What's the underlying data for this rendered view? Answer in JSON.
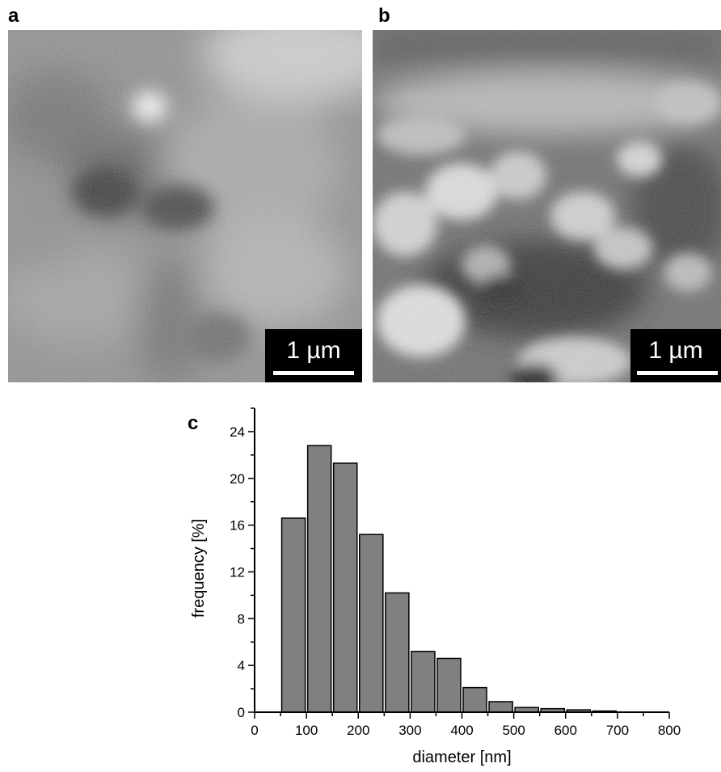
{
  "panels": {
    "a": {
      "letter": "a",
      "scalebar_label": "1 µm"
    },
    "b": {
      "letter": "b",
      "scalebar_label": "1 µm"
    },
    "c": {
      "letter": "c"
    }
  },
  "chart_data": {
    "type": "bar",
    "title": "",
    "xlabel": "diameter [nm]",
    "ylabel": "frequency [%]",
    "xlim": [
      0,
      800
    ],
    "ylim": [
      0,
      26
    ],
    "xticks": [
      0,
      100,
      200,
      300,
      400,
      500,
      600,
      700,
      800
    ],
    "yticks": [
      0,
      4,
      8,
      12,
      16,
      20,
      24
    ],
    "bin_width": 50,
    "bin_centers": [
      75,
      125,
      175,
      225,
      275,
      325,
      375,
      425,
      475,
      525,
      575,
      625,
      675
    ],
    "values": [
      16.6,
      22.8,
      21.3,
      15.2,
      10.2,
      5.2,
      4.6,
      2.1,
      0.9,
      0.4,
      0.3,
      0.2,
      0.1
    ],
    "bar_color": "#808080",
    "grid": false,
    "legend": "none"
  }
}
